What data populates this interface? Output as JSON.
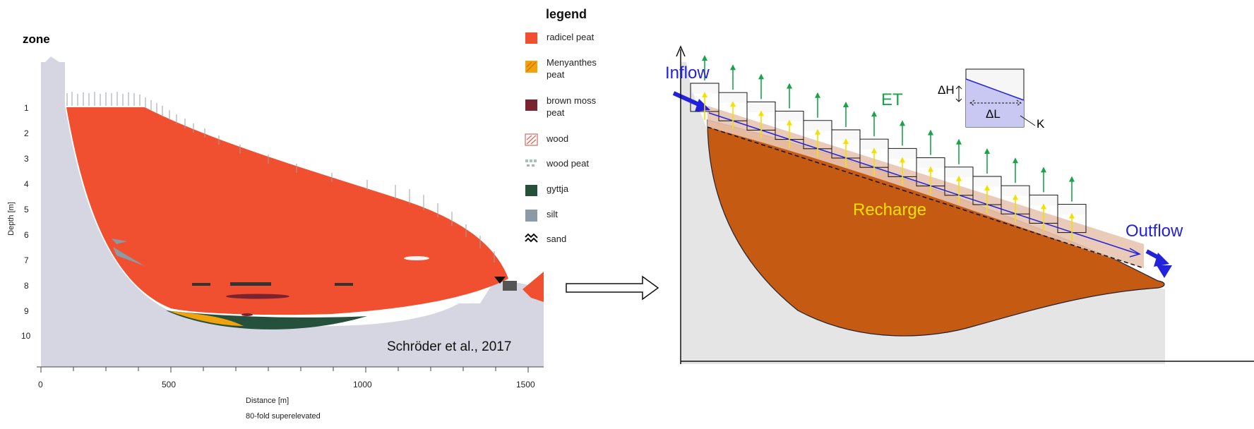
{
  "left": {
    "zone_title": "zone",
    "depth_ticks": [
      "1",
      "2",
      "3",
      "4",
      "5",
      "6",
      "7",
      "8",
      "9",
      "10"
    ],
    "y_axis_label": "Depth [m]",
    "x_ticks": [
      "0",
      "500",
      "1000",
      "1500"
    ],
    "x_axis_label": "Distance [m]",
    "superelevation_note": "80-fold superelevated",
    "citation": "Schröder et al., 2017",
    "legend": {
      "title": "legend",
      "items": [
        {
          "label": "radicel peat",
          "color": "#f05030"
        },
        {
          "label": "Menyanthes peat",
          "color": "#f2a20c"
        },
        {
          "label": "brown moss peat",
          "color": "#7a2230"
        },
        {
          "label": "wood",
          "color": "#e86050"
        },
        {
          "label": "wood peat",
          "color": "#9ec8b0"
        },
        {
          "label": "gyttja",
          "color": "#24503c"
        },
        {
          "label": "silt",
          "color": "#8c9aa6"
        },
        {
          "label": "sand",
          "color": "#222222"
        }
      ]
    }
  },
  "right": {
    "inflow": "Inflow",
    "outflow": "Outflow",
    "et": "ET",
    "recharge": "Recharge",
    "delta_h": "ΔH",
    "delta_l": "ΔL",
    "k": "K"
  },
  "colors": {
    "peat_red": "#f05030",
    "bg_grey": "#d8d8e2",
    "peat_brown": "#c55a12",
    "flow_blue": "#2222dd",
    "et_green": "#1aa34a",
    "recharge_yellow": "#f2e100"
  }
}
